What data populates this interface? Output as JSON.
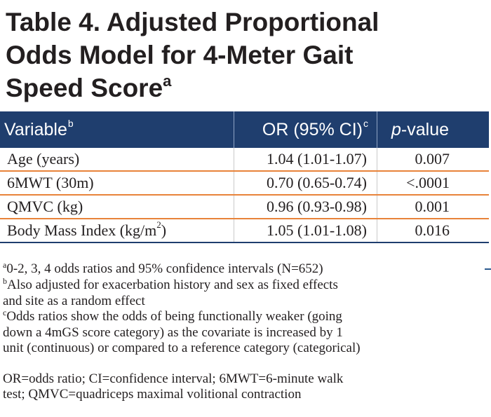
{
  "title": {
    "line1": "Table 4. Adjusted Proportional",
    "line2": "Odds Model for 4-Meter Gait",
    "line3": "Speed Score",
    "marker": "a"
  },
  "table": {
    "headers": {
      "variable": "Variable",
      "variable_marker": "b",
      "or": "OR (95% CI)",
      "or_marker": "c",
      "p_italic": "p",
      "p_rest": "-value"
    },
    "rows": [
      {
        "variable": "Age (years)",
        "or": "1.04 (1.01-1.07)",
        "p": "0.007"
      },
      {
        "variable": "6MWT (30m)",
        "or": "0.70 (0.65-0.74)",
        "p": "<.0001"
      },
      {
        "variable": "QMVC (kg)",
        "or": "0.96 (0.93-0.98)",
        "p": "0.001"
      },
      {
        "variable": "Body Mass Index (kg/m",
        "variable_sup": "2",
        "variable_end": ")",
        "or": "1.05 (1.01-1.08)",
        "p": "0.016"
      }
    ]
  },
  "footnotes": {
    "a_marker": "a",
    "a_text": "0-2, 3, 4 odds ratios and 95% confidence intervals (N=652)",
    "b_marker": "b",
    "b_line1": "Also adjusted for exacerbation history and sex as fixed effects",
    "b_line2": "and site as a random effect",
    "c_marker": "c",
    "c_line1": "Odds ratios show the odds of being functionally weaker (going",
    "c_line2": "down a 4mGS score category) as the covariate is increased by 1",
    "c_line3": "unit (continuous) or compared to a reference category (categorical)",
    "abbr_line1": "OR=odds ratio; CI=confidence interval; 6MWT=6-minute walk",
    "abbr_line2": "test; QMVC=quadriceps maximal volitional contraction"
  },
  "colors": {
    "header_bg": "#1f3e6e",
    "row_divider": "#e8833a",
    "text": "#231f20"
  }
}
